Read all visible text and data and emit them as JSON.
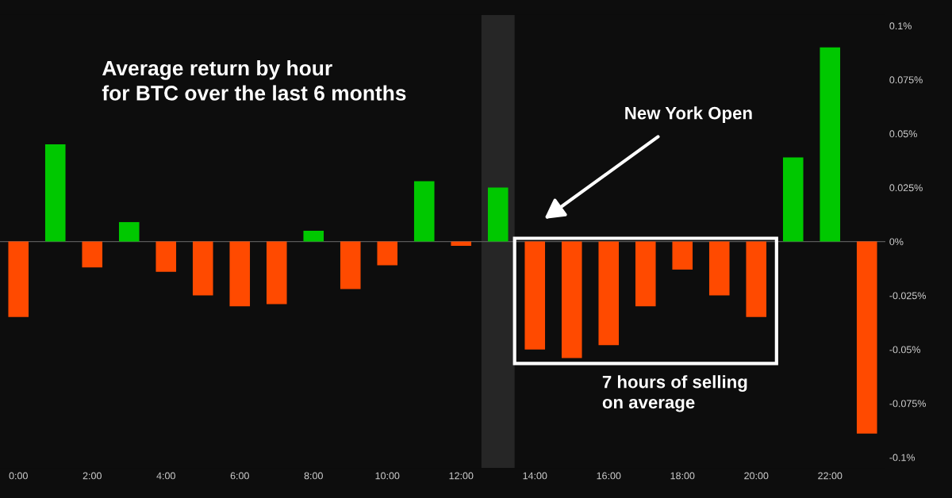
{
  "chart_data": {
    "type": "bar",
    "title": "Average return by hour\nfor BTC over the last 6 months",
    "categories": [
      "0:00",
      null,
      "2:00",
      null,
      "4:00",
      null,
      "6:00",
      null,
      "8:00",
      null,
      "10:00",
      null,
      "12:00",
      null,
      "14:00",
      null,
      "16:00",
      null,
      "18:00",
      null,
      "20:00",
      null,
      "22:00",
      null
    ],
    "values": [
      -0.035,
      0.045,
      -0.012,
      0.009,
      -0.014,
      -0.025,
      -0.03,
      -0.029,
      0.005,
      -0.022,
      -0.011,
      0.028,
      -0.002,
      0.025,
      -0.05,
      -0.054,
      -0.048,
      -0.03,
      -0.013,
      -0.025,
      -0.035,
      0.039,
      0.09,
      -0.089
    ],
    "colors": [
      "#ff4a00",
      "#00c800",
      "#ff4a00",
      "#00c800",
      "#ff4a00",
      "#ff4a00",
      "#ff4a00",
      "#ff4a00",
      "#00c800",
      "#ff4a00",
      "#ff4a00",
      "#00c800",
      "#ff4a00",
      "#00c800",
      "#ff4a00",
      "#ff4a00",
      "#ff4a00",
      "#ff4a00",
      "#ff4a00",
      "#ff4a00",
      "#ff4a00",
      "#00c800",
      "#00c800",
      "#ff4a00"
    ],
    "ylim": [
      -0.105,
      0.105
    ],
    "yticks": [
      {
        "value": -0.1,
        "label": "-0.1%"
      },
      {
        "value": -0.075,
        "label": "-0.075%"
      },
      {
        "value": -0.05,
        "label": "-0.05%"
      },
      {
        "value": -0.025,
        "label": "-0.025%"
      },
      {
        "value": 0,
        "label": "0%"
      },
      {
        "value": 0.025,
        "label": "0.025%"
      },
      {
        "value": 0.05,
        "label": "0.05%"
      },
      {
        "value": 0.075,
        "label": "0.075%"
      },
      {
        "value": 0.1,
        "label": "0.1%"
      }
    ],
    "ref_lines": [
      {
        "axis": "y",
        "value": 0,
        "color": "#5a5a5a"
      }
    ],
    "annotations": [
      "New York Open",
      "7 hours of selling\non average"
    ],
    "grid": false,
    "legend": false
  }
}
